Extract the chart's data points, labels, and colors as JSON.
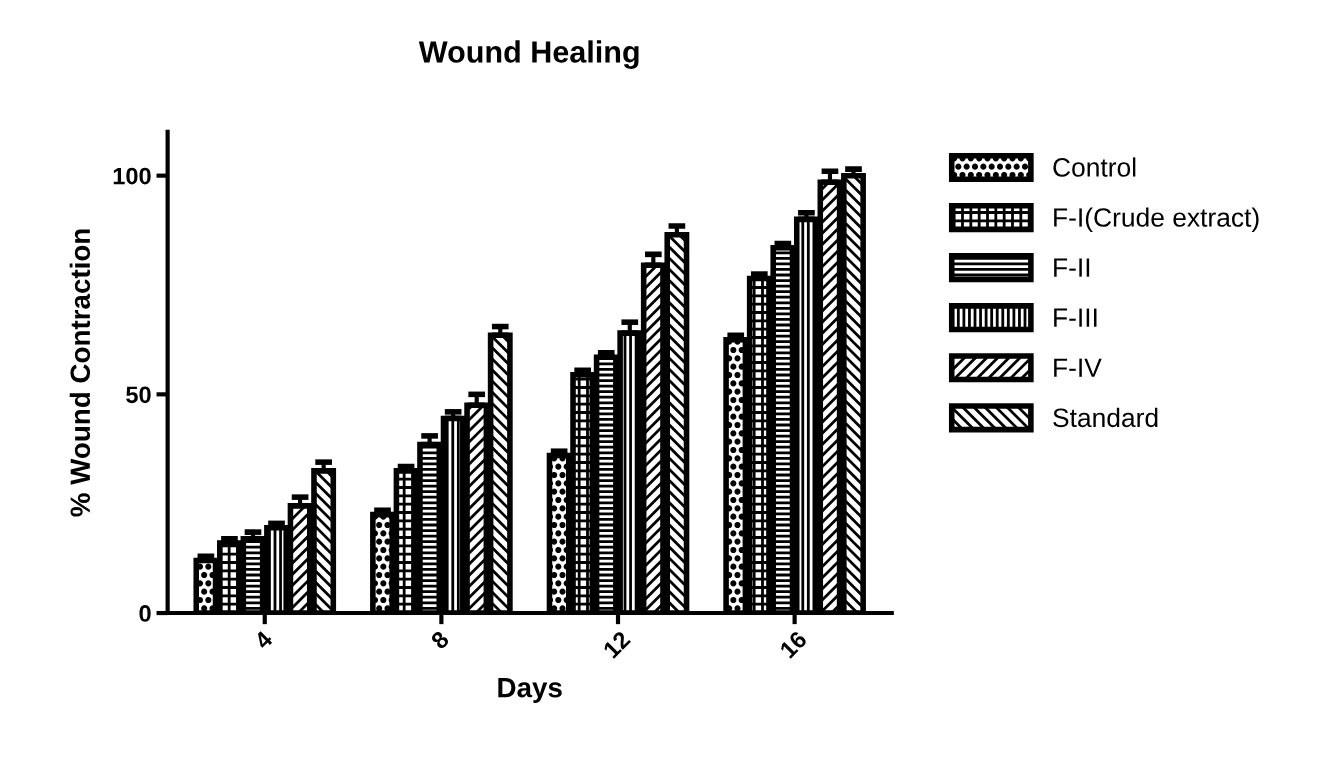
{
  "chart_data": {
    "type": "bar",
    "title": "Wound Healing",
    "xlabel": "Days",
    "ylabel": "% Wound Contraction",
    "categories": [
      "4",
      "8",
      "12",
      "16"
    ],
    "series": [
      {
        "name": "Control",
        "color": "#000000",
        "values": [
          12,
          22.5,
          36,
          62.5
        ],
        "errors": [
          [
            12,
            13
          ],
          [
            22.5,
            23.5
          ],
          [
            36,
            37
          ],
          [
            62.5,
            63.5
          ]
        ]
      },
      {
        "name": "F-I(Crude extract)",
        "color": "#000000",
        "values": [
          16,
          32.5,
          54.5,
          76.5
        ],
        "errors": [
          [
            16,
            17
          ],
          [
            32.5,
            33.5
          ],
          [
            54.5,
            55.5
          ],
          [
            76.5,
            77.5
          ]
        ]
      },
      {
        "name": "F-II",
        "color": "#000000",
        "values": [
          17,
          38.5,
          58.5,
          83.5
        ],
        "errors": [
          [
            17,
            18.5
          ],
          [
            38.5,
            40.5
          ],
          [
            58.5,
            59.5
          ],
          [
            83.5,
            84.5
          ]
        ]
      },
      {
        "name": "F-III",
        "color": "#000000",
        "values": [
          19.5,
          44.5,
          64,
          90
        ],
        "errors": [
          [
            19.5,
            20.5
          ],
          [
            44.5,
            46
          ],
          [
            64,
            66.5
          ],
          [
            90,
            91.5
          ]
        ]
      },
      {
        "name": "F-IV",
        "color": "#000000",
        "values": [
          24.5,
          47.5,
          79.5,
          98.5
        ],
        "errors": [
          [
            24.5,
            26.5
          ],
          [
            47.5,
            50
          ],
          [
            79.5,
            82
          ],
          [
            98.5,
            101
          ]
        ]
      },
      {
        "name": "Standard",
        "color": "#000000",
        "values": [
          32.5,
          63.5,
          86.5,
          100
        ],
        "errors": [
          [
            32.5,
            34.5
          ],
          [
            63.5,
            65.5
          ],
          [
            86.5,
            88.5
          ],
          [
            100,
            101.5
          ]
        ]
      }
    ],
    "ylim": [
      0,
      110
    ],
    "yticks": [
      0,
      50,
      100
    ],
    "grid": false,
    "legend": "right"
  }
}
